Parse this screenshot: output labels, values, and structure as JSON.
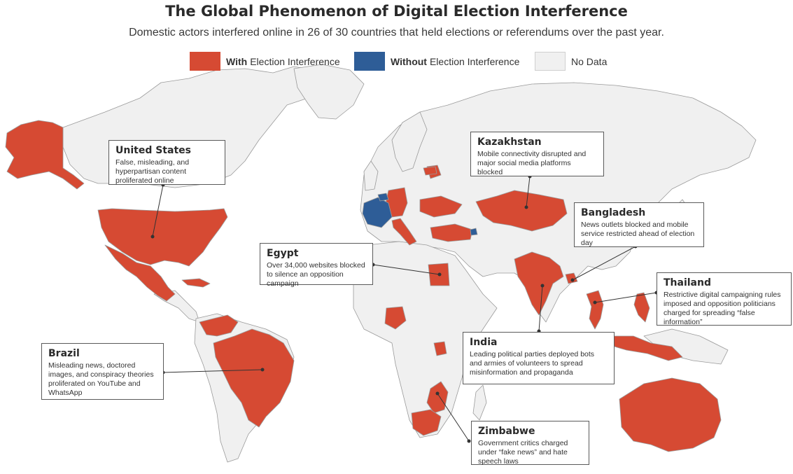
{
  "title": "The Global Phenomenon of Digital Election Interference",
  "subtitle": "Domestic actors interfered online in 26 of 30 countries that held elections or referendums over the past year.",
  "colors": {
    "with_interference": "#d64a33",
    "without_interference": "#2e5d97",
    "no_data": "#f0f0f0",
    "ocean": "#ffffff",
    "border": "#9a9a9a"
  },
  "legend": {
    "with": {
      "bold": "With",
      "text": "Election Interference"
    },
    "without": {
      "bold": "Without",
      "text": "Election Interference"
    },
    "nodata": {
      "text": "No Data"
    }
  },
  "callouts": {
    "united_states": {
      "title": "United States",
      "text": "False, misleading, and hyperpartisan content proliferated online"
    },
    "kazakhstan": {
      "title": "Kazakhstan",
      "text": "Mobile connectivity disrupted and major social media platforms blocked"
    },
    "bangladesh": {
      "title": "Bangladesh",
      "text": "News outlets blocked and mobile service restricted ahead of election day"
    },
    "egypt": {
      "title": "Egypt",
      "text": "Over 34,000 websites blocked to silence an opposition campaign"
    },
    "thailand": {
      "title": "Thailand",
      "text": "Restrictive digital campaigning rules imposed and opposition politicians charged for spreading “false information”"
    },
    "brazil": {
      "title": "Brazil",
      "text": "Misleading news, doctored images, and conspiracy theories proliferated on YouTube and WhatsApp"
    },
    "india": {
      "title": "India",
      "text": "Leading political parties deployed bots and armies of volunteers to spread misinformation and propaganda"
    },
    "zimbabwe": {
      "title": "Zimbabwe",
      "text": "Government critics charged under “fake news” and hate speech laws"
    }
  }
}
